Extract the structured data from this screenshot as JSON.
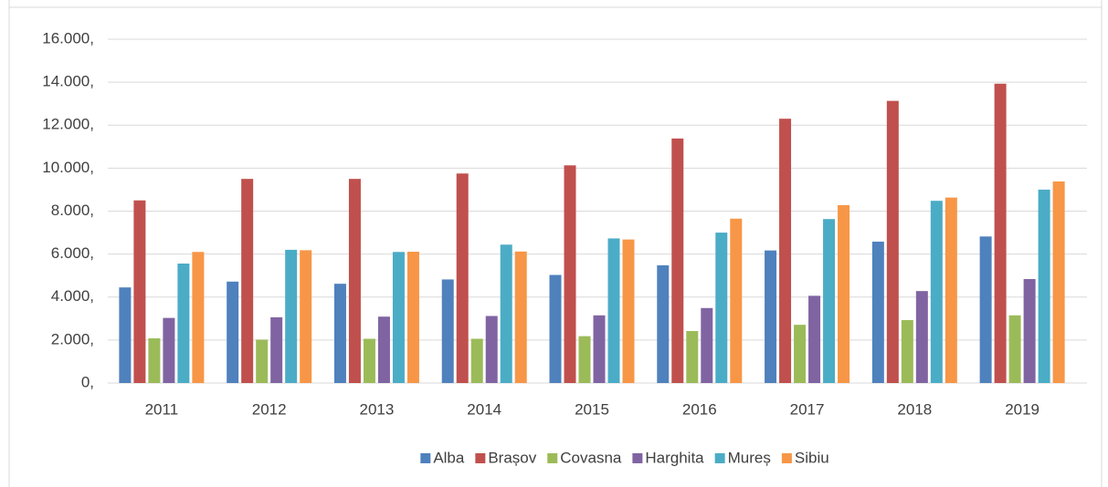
{
  "chart_data": {
    "type": "bar",
    "categories": [
      "2011",
      "2012",
      "2013",
      "2014",
      "2015",
      "2016",
      "2017",
      "2018",
      "2019"
    ],
    "series": [
      {
        "name": "Alba",
        "color": "#4f81bd",
        "values": [
          4450,
          4720,
          4620,
          4820,
          5030,
          5480,
          6170,
          6580,
          6820
        ]
      },
      {
        "name": "Brașov",
        "color": "#c0504d",
        "values": [
          8500,
          9500,
          9500,
          9750,
          10130,
          11380,
          12300,
          13130,
          13930
        ]
      },
      {
        "name": "Covasna",
        "color": "#9bbb59",
        "values": [
          2080,
          2020,
          2060,
          2060,
          2180,
          2420,
          2710,
          2930,
          3150
        ]
      },
      {
        "name": "Harghita",
        "color": "#8064a2",
        "values": [
          3030,
          3060,
          3090,
          3120,
          3150,
          3490,
          4060,
          4280,
          4840
        ]
      },
      {
        "name": "Mureș",
        "color": "#4bacc6",
        "values": [
          5560,
          6200,
          6100,
          6440,
          6730,
          7000,
          7630,
          8480,
          9000
        ]
      },
      {
        "name": "Sibiu",
        "color": "#f79646",
        "values": [
          6100,
          6180,
          6110,
          6120,
          6680,
          7650,
          8280,
          8630,
          9380
        ]
      }
    ],
    "ylim": [
      0,
      16000
    ],
    "yticks": [
      {
        "value": 0,
        "label": "0,"
      },
      {
        "value": 2000,
        "label": "2.000,"
      },
      {
        "value": 4000,
        "label": "4.000,"
      },
      {
        "value": 6000,
        "label": "6.000,"
      },
      {
        "value": 8000,
        "label": "8.000,"
      },
      {
        "value": 10000,
        "label": "10.000,"
      },
      {
        "value": 12000,
        "label": "12.000,"
      },
      {
        "value": 14000,
        "label": "14.000,"
      },
      {
        "value": 16000,
        "label": "16.000,"
      }
    ],
    "grid": true,
    "legend": "bottom"
  }
}
